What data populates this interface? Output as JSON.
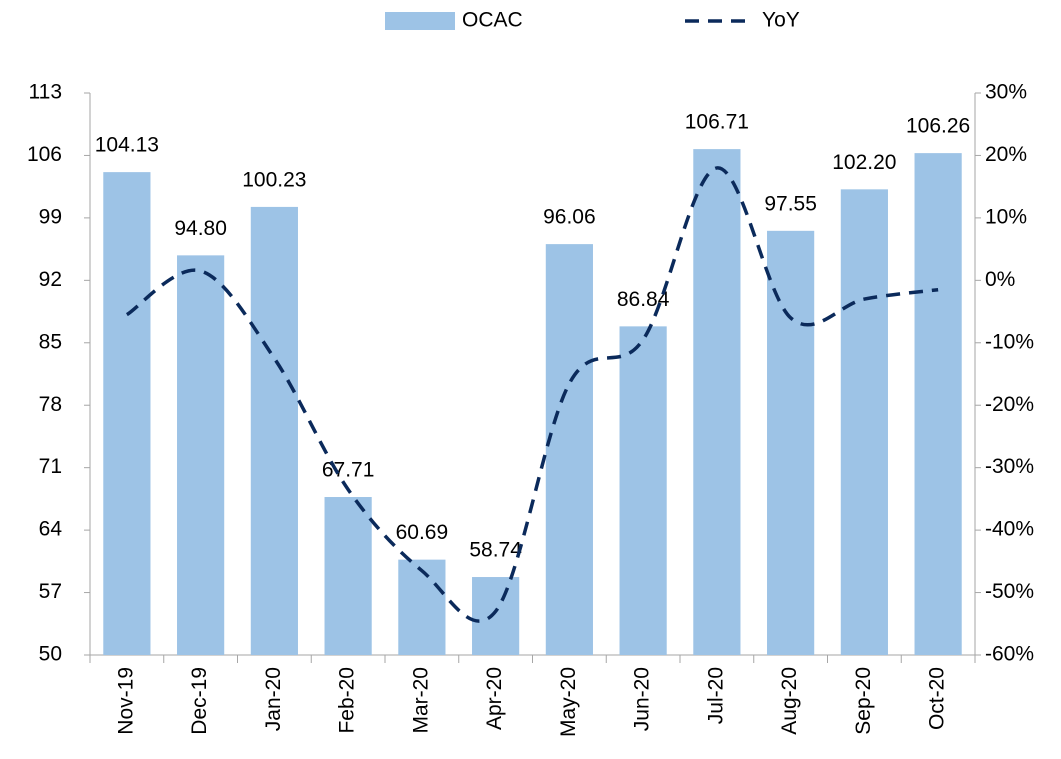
{
  "chart_data": {
    "type": "bar",
    "categories": [
      "Nov-19",
      "Dec-19",
      "Jan-20",
      "Feb-20",
      "Mar-20",
      "Apr-20",
      "May-20",
      "Jun-20",
      "Jul-20",
      "Aug-20",
      "Sep-20",
      "Oct-20"
    ],
    "series": [
      {
        "name": "OCAC",
        "type": "bar",
        "color": "#9dc3e6",
        "values": [
          104.13,
          94.8,
          100.23,
          67.71,
          60.69,
          58.74,
          96.06,
          86.84,
          106.71,
          97.55,
          102.2,
          106.26
        ],
        "value_labels": [
          "104.13",
          "94.80",
          "100.23",
          "67.71",
          "60.69",
          "58.74",
          "96.06",
          "86.84",
          "106.71",
          "97.55",
          "102.20",
          "106.26"
        ]
      },
      {
        "name": "YoY",
        "type": "line",
        "axis": "y2",
        "color": "#0b2a5b",
        "dashed": true,
        "values": [
          -5.5,
          1.5,
          -12.5,
          -33.5,
          -46.5,
          -53,
          -16.5,
          -9.5,
          18,
          -6,
          -3,
          -1.5
        ]
      }
    ],
    "ylim": [
      50,
      113
    ],
    "yticks": [
      50,
      57,
      64,
      71,
      78,
      85,
      92,
      99,
      106,
      113
    ],
    "y2lim": [
      -60,
      30
    ],
    "y2ticks": [
      {
        "value": -60,
        "label": "-60%"
      },
      {
        "value": -50,
        "label": "-50%"
      },
      {
        "value": -40,
        "label": "-40%"
      },
      {
        "value": -30,
        "label": "-30%"
      },
      {
        "value": -20,
        "label": "-20%"
      },
      {
        "value": -10,
        "label": "-10%"
      },
      {
        "value": 0,
        "label": "0%"
      },
      {
        "value": 10,
        "label": "10%"
      },
      {
        "value": 20,
        "label": "20%"
      },
      {
        "value": 30,
        "label": "30%"
      }
    ],
    "legend": "top",
    "grid": false
  }
}
